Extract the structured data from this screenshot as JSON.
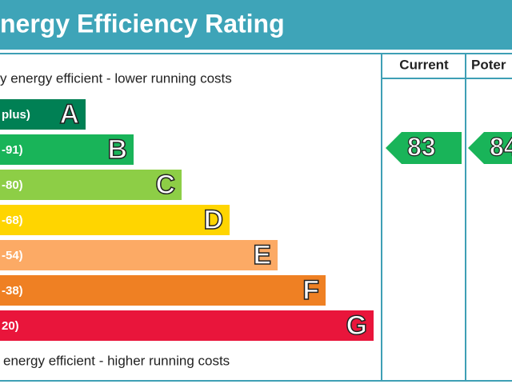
{
  "chart_data": {
    "type": "epc",
    "title": "nergy Efficiency Rating",
    "top_note": "y energy efficient - lower running costs",
    "bottom_note": "energy efficient - higher running costs",
    "bands": [
      {
        "range": "plus)",
        "letter": "A",
        "color": "#008054"
      },
      {
        "range": "-91)",
        "letter": "B",
        "color": "#19b459"
      },
      {
        "range": "-80)",
        "letter": "C",
        "color": "#8dce46"
      },
      {
        "range": "-68)",
        "letter": "D",
        "color": "#ffd500"
      },
      {
        "range": "-54)",
        "letter": "E",
        "color": "#fcaa65"
      },
      {
        "range": "-38)",
        "letter": "F",
        "color": "#ef8023"
      },
      {
        "range": "20)",
        "letter": "G",
        "color": "#e9153b"
      }
    ],
    "current": {
      "header": "Current",
      "value": 83,
      "color": "#19b459"
    },
    "potential": {
      "header": "Poter",
      "value": 84,
      "color": "#19b459"
    }
  }
}
